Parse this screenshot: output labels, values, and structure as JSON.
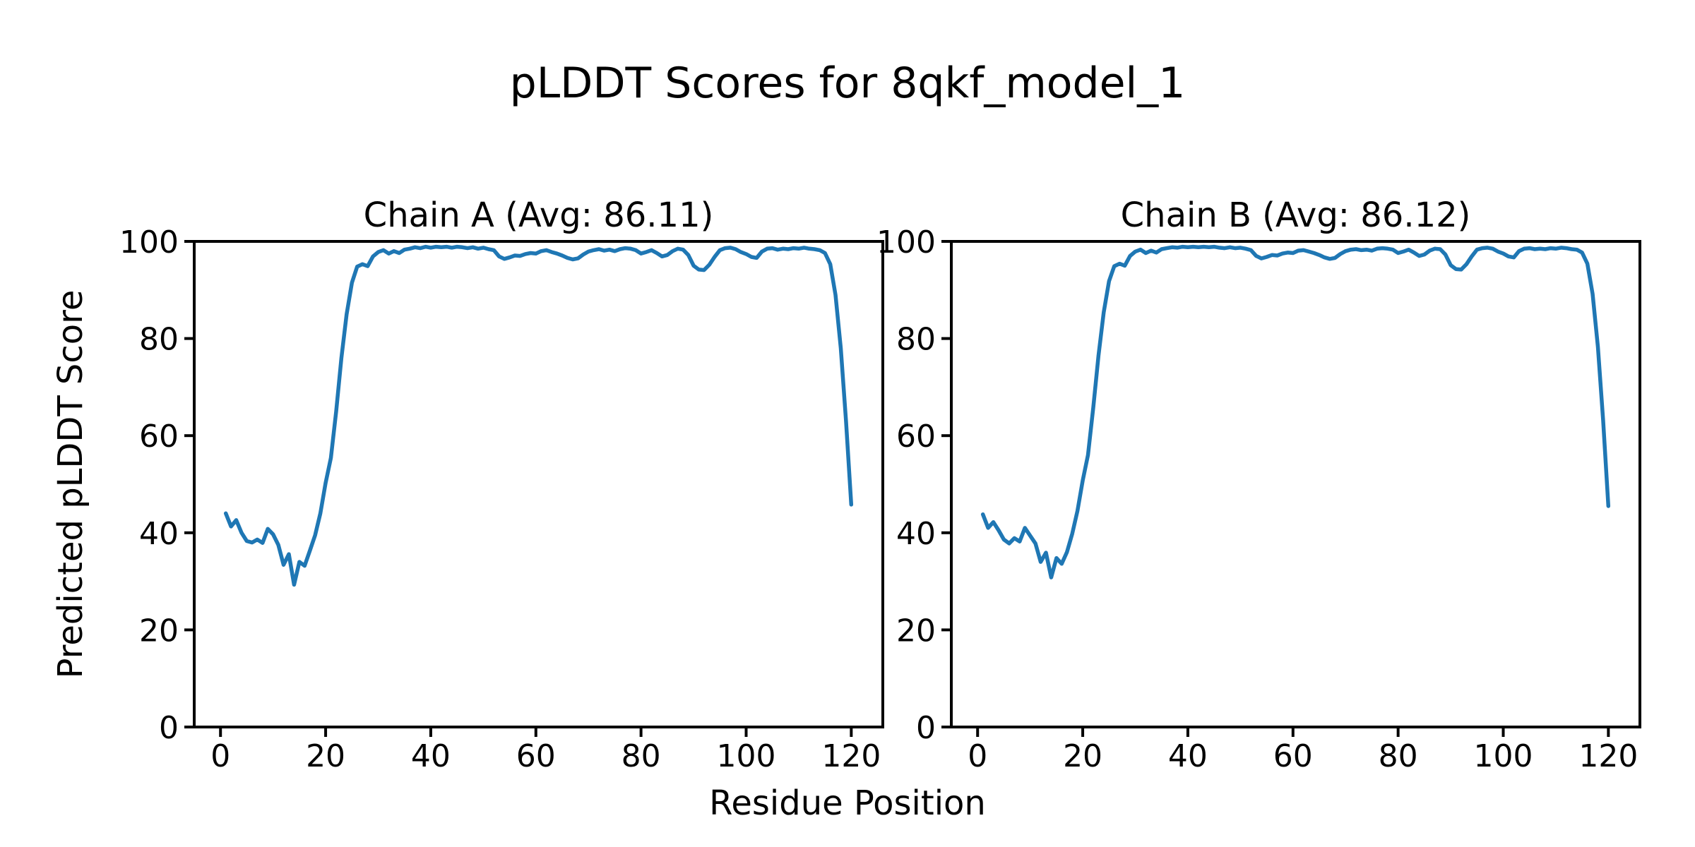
{
  "figure": {
    "suptitle": "pLDDT Scores for 8qkf_model_1",
    "background_color": "#ffffff",
    "text_color": "#000000",
    "spine_color": "#000000"
  },
  "chart_data": {
    "type": "line",
    "title": "pLDDT Scores for 8qkf_model_1",
    "xlabel": "Residue Position",
    "ylabel": "Predicted pLDDT Score",
    "line_color": "#1f77b4",
    "grid": false,
    "legend": "none",
    "xlim": [
      -5,
      126
    ],
    "ylim": [
      0,
      100
    ],
    "x_ticks": [
      0,
      20,
      40,
      60,
      80,
      100,
      120
    ],
    "y_ticks": [
      0,
      20,
      40,
      60,
      80,
      100
    ],
    "x_start_residue": 1,
    "series": [
      {
        "name": "Chain A",
        "title": "Chain A (Avg: 86.11)",
        "avg_label": "86.11",
        "values": [
          44.0,
          41.3,
          42.6,
          40.0,
          38.3,
          38.0,
          38.6,
          37.9,
          40.8,
          39.7,
          37.5,
          33.4,
          35.6,
          29.3,
          34.0,
          33.2,
          36.3,
          39.5,
          44.0,
          50.3,
          55.4,
          65.0,
          76.0,
          85.0,
          91.5,
          94.8,
          95.3,
          94.9,
          96.9,
          97.8,
          98.2,
          97.5,
          98.0,
          97.6,
          98.3,
          98.5,
          98.8,
          98.6,
          98.9,
          98.7,
          98.9,
          98.8,
          98.9,
          98.7,
          98.9,
          98.8,
          98.6,
          98.8,
          98.5,
          98.7,
          98.4,
          98.2,
          96.9,
          96.4,
          96.7,
          97.1,
          97.0,
          97.4,
          97.6,
          97.5,
          98.0,
          98.2,
          97.8,
          97.5,
          97.1,
          96.6,
          96.3,
          96.5,
          97.3,
          97.9,
          98.2,
          98.4,
          98.1,
          98.3,
          98.0,
          98.4,
          98.6,
          98.5,
          98.2,
          97.5,
          97.8,
          98.2,
          97.6,
          96.9,
          97.2,
          98.0,
          98.5,
          98.3,
          97.2,
          95.0,
          94.2,
          94.1,
          95.2,
          96.8,
          98.2,
          98.6,
          98.7,
          98.4,
          97.8,
          97.4,
          96.8,
          96.6,
          97.9,
          98.5,
          98.6,
          98.3,
          98.5,
          98.4,
          98.6,
          98.5,
          98.7,
          98.5,
          98.4,
          98.2,
          97.6,
          95.3,
          89.0,
          78.0,
          63.0,
          45.8
        ]
      },
      {
        "name": "Chain B",
        "title": "Chain B (Avg: 86.12)",
        "avg_label": "86.12",
        "values": [
          43.8,
          41.0,
          42.2,
          40.5,
          38.6,
          37.8,
          38.9,
          38.2,
          41.0,
          39.4,
          37.8,
          34.0,
          35.9,
          30.8,
          34.8,
          33.6,
          36.0,
          39.8,
          44.5,
          50.8,
          56.0,
          65.8,
          76.5,
          85.4,
          91.8,
          94.9,
          95.4,
          95.0,
          97.0,
          97.9,
          98.3,
          97.6,
          98.1,
          97.7,
          98.4,
          98.6,
          98.8,
          98.7,
          98.9,
          98.8,
          98.9,
          98.8,
          98.9,
          98.8,
          98.9,
          98.7,
          98.6,
          98.8,
          98.6,
          98.7,
          98.5,
          98.2,
          97.0,
          96.5,
          96.8,
          97.2,
          97.1,
          97.5,
          97.7,
          97.6,
          98.1,
          98.2,
          97.9,
          97.6,
          97.2,
          96.7,
          96.4,
          96.6,
          97.4,
          98.0,
          98.3,
          98.4,
          98.2,
          98.3,
          98.1,
          98.5,
          98.6,
          98.5,
          98.3,
          97.6,
          97.9,
          98.3,
          97.7,
          97.0,
          97.3,
          98.1,
          98.5,
          98.4,
          97.3,
          95.1,
          94.3,
          94.2,
          95.3,
          96.9,
          98.3,
          98.6,
          98.7,
          98.5,
          97.9,
          97.5,
          96.9,
          96.7,
          98.0,
          98.5,
          98.6,
          98.4,
          98.5,
          98.4,
          98.6,
          98.5,
          98.7,
          98.6,
          98.4,
          98.3,
          97.7,
          95.4,
          89.2,
          78.3,
          63.2,
          45.5
        ]
      }
    ]
  }
}
